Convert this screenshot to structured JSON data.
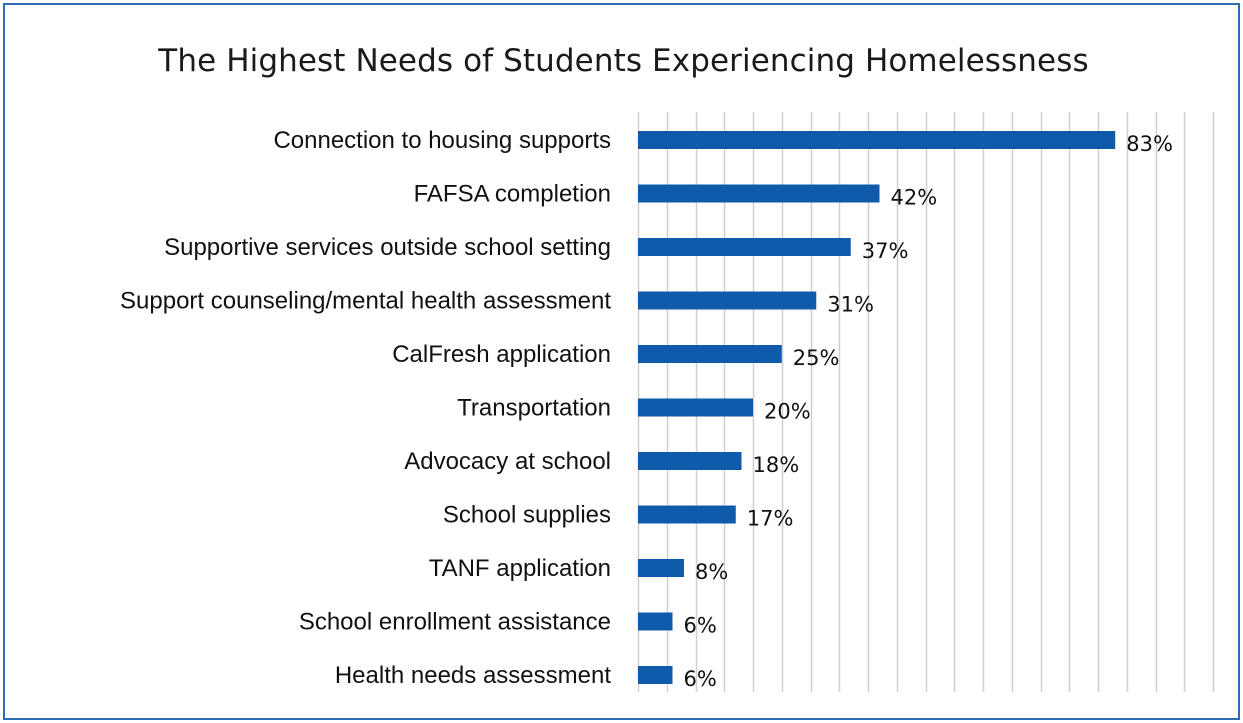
{
  "chart_data": {
    "type": "bar",
    "orientation": "horizontal",
    "title": "The Highest Needs of Students Experiencing Homelessness",
    "xlabel": "",
    "ylabel": "",
    "xlim": [
      0,
      100
    ],
    "grid": true,
    "legend": "none",
    "bar_color": "#0f5aab",
    "grid_color": "#d0d0d0",
    "border_color": "#2e6bb0",
    "categories": [
      "Connection to housing supports",
      "FAFSA completion",
      "Supportive services outside school setting",
      "Support counseling/mental health assessment",
      "CalFresh application",
      "Transportation",
      "Advocacy at school",
      "School supplies",
      "TANF application",
      "School enrollment assistance",
      "Health needs assessment"
    ],
    "values": [
      83,
      42,
      37,
      31,
      25,
      20,
      18,
      17,
      8,
      6,
      6
    ],
    "value_labels": [
      "83%",
      "42%",
      "37%",
      "31%",
      "25%",
      "20%",
      "18%",
      "17%",
      "8%",
      "6%",
      "6%"
    ]
  }
}
